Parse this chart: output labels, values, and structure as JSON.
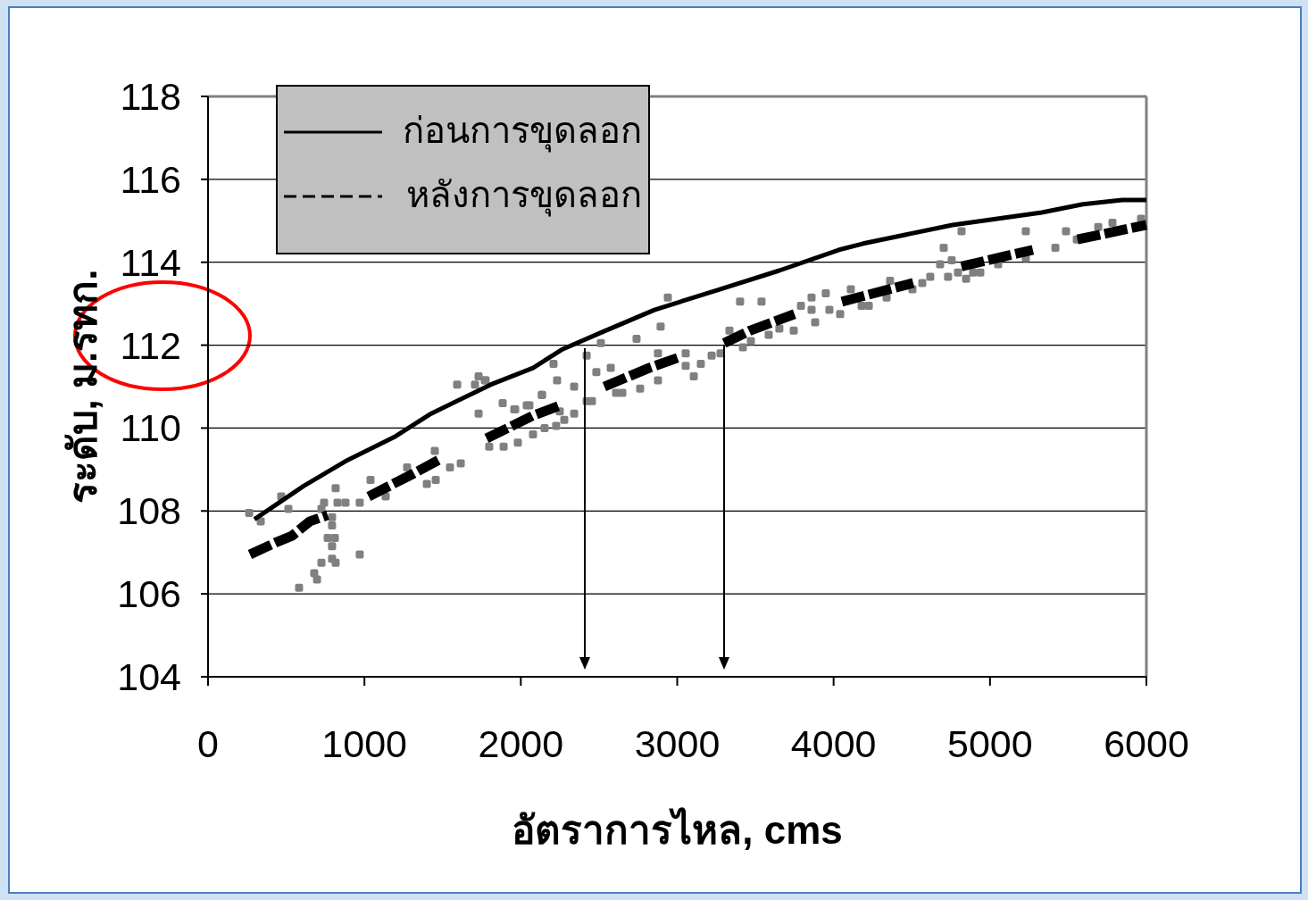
{
  "chart_data": {
    "type": "line",
    "xlabel": "อัตราการไหล, cms",
    "ylabel": "ระดับ, ม.รทก.",
    "xlim": [
      0,
      6000
    ],
    "xticks": [
      0,
      1000,
      2000,
      3000,
      4000,
      5000,
      6000
    ],
    "ylim": [
      104,
      118
    ],
    "yticks": [
      104,
      106,
      108,
      110,
      112,
      114,
      116,
      118
    ],
    "grid": "y",
    "legend": "top left",
    "series": [
      {
        "name": "ก่อนการขุดลอก",
        "color": "#000000",
        "line_style": "solid",
        "x": [
          297,
          611,
          879,
          1199,
          1427,
          1809,
          2078,
          2266,
          2511,
          2854,
          3276,
          3653,
          4035,
          4189,
          4760,
          5331,
          5594,
          5845,
          6000
        ],
        "values": [
          107.8,
          108.6,
          109.2,
          109.8,
          110.35,
          111.05,
          111.45,
          111.9,
          112.3,
          112.85,
          113.35,
          113.8,
          114.3,
          114.45,
          114.9,
          115.2,
          115.4,
          115.5,
          115.5
        ]
      },
      {
        "name": "หลังการขุดลอก",
        "color": "#000000",
        "line_style": "dashed",
        "x": [
          268,
          440,
          537,
          651,
          765,
          null,
          1027,
          1313,
          1484,
          null,
          1781,
          2078,
          2255,
          null,
          2534,
          2820,
          3008,
          null,
          3300,
          3465,
          3750,
          null,
          4053,
          4509,
          null,
          4817,
          5274,
          null,
          5559,
          6000
        ],
        "values": [
          106.95,
          107.25,
          107.4,
          107.75,
          107.9,
          null,
          108.35,
          108.9,
          109.25,
          null,
          109.75,
          110.3,
          110.55,
          null,
          111.0,
          111.45,
          111.7,
          null,
          112.05,
          112.35,
          112.75,
          null,
          113.05,
          113.5,
          null,
          113.9,
          114.3,
          null,
          114.55,
          114.9
        ]
      },
      {
        "type": "scatter",
        "color": "#808080",
        "marker": "square",
        "x": [
          263,
          337,
          468,
          514,
          582,
          679,
          697,
          725,
          742,
          725,
          793,
          793,
          765,
          811,
          793,
          793,
          816,
          816,
          828,
          879,
          970,
          970,
          1039,
          1136,
          1273,
          1399,
          1456,
          1450,
          1547,
          1616,
          1593,
          1707,
          1730,
          1770,
          1730,
          1798,
          1890,
          1981,
          1884,
          1958,
          2055,
          2135,
          2209,
          2232,
          2078,
          2152,
          2226,
          2278,
          2341,
          2421,
          2483,
          2512,
          2341,
          2421,
          2455,
          2940,
          2894,
          2740,
          2575,
          2877,
          3054,
          3054,
          3106,
          3151,
          3220,
          3277,
          3334,
          3402,
          3539,
          3420,
          3585,
          3745,
          3791,
          3859,
          3859,
          3882,
          3950,
          3973,
          4042,
          4110,
          4179,
          4225,
          2877,
          2763,
          2649,
          2609,
          2249,
          2135,
          2038,
          1964,
          1775,
          3471,
          3653,
          4339,
          4361,
          4504,
          4567,
          4618,
          4681,
          4704,
          4755,
          4732,
          4795,
          4818,
          4847,
          4892,
          4938,
          5052,
          5229,
          5229,
          5418,
          5486,
          5555,
          5692,
          5783,
          5966
        ],
        "values": [
          107.95,
          107.75,
          108.35,
          108.05,
          106.15,
          106.5,
          106.35,
          106.75,
          108.2,
          108.05,
          107.85,
          107.65,
          107.35,
          107.35,
          107.15,
          106.85,
          106.75,
          108.55,
          108.2,
          108.2,
          108.2,
          106.95,
          108.75,
          108.35,
          109.05,
          108.65,
          108.75,
          109.45,
          109.05,
          109.15,
          111.05,
          111.05,
          111.25,
          111.15,
          110.35,
          109.55,
          109.55,
          109.65,
          110.6,
          110.45,
          110.55,
          110.8,
          111.55,
          111.15,
          109.85,
          110.0,
          110.05,
          110.2,
          110.35,
          111.75,
          111.35,
          112.05,
          111.0,
          110.65,
          110.65,
          113.15,
          112.45,
          112.15,
          111.45,
          111.8,
          111.8,
          111.5,
          111.25,
          111.55,
          111.75,
          111.8,
          112.35,
          113.05,
          113.05,
          111.95,
          112.25,
          112.35,
          112.95,
          113.15,
          112.85,
          112.55,
          113.25,
          112.85,
          112.75,
          113.35,
          112.95,
          112.95,
          111.15,
          110.95,
          110.85,
          110.85,
          110.4,
          110.8,
          110.55,
          110.45,
          111.15,
          112.1,
          112.4,
          113.15,
          113.55,
          113.35,
          113.5,
          113.65,
          113.95,
          114.35,
          114.05,
          113.65,
          113.75,
          114.75,
          113.6,
          113.75,
          113.75,
          113.95,
          114.75,
          114.1,
          114.35,
          114.75,
          114.55,
          114.85,
          114.95,
          115.05
        ]
      }
    ]
  }
}
